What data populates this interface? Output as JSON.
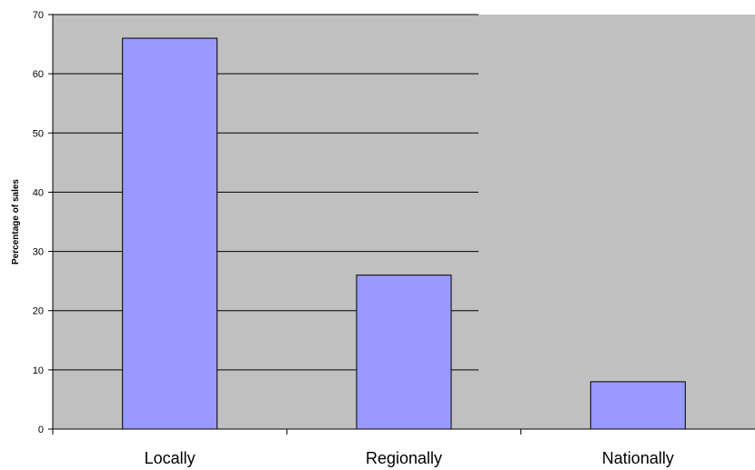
{
  "chart_data": {
    "type": "bar",
    "title": "",
    "xlabel": "",
    "ylabel": "Percentage of sales",
    "categories": [
      "Locally",
      "Regionally",
      "Nationally"
    ],
    "values": [
      66,
      26,
      8
    ],
    "ylim": [
      0,
      70
    ],
    "yticks": [
      0,
      10,
      20,
      30,
      40,
      50,
      60,
      70
    ],
    "grid": "horizontal",
    "legend": "none"
  },
  "colors": {
    "plot_background": "#c0c0c0",
    "bar_fill": "#9999ff",
    "bar_stroke": "#000000",
    "gridline": "#000000",
    "axis": "#000000"
  }
}
